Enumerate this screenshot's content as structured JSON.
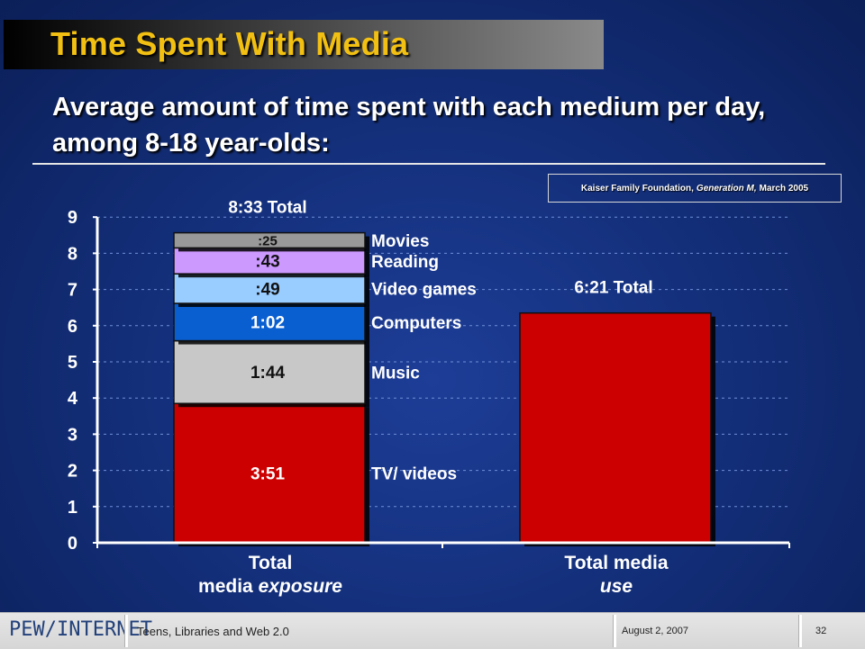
{
  "slide": {
    "title": "Time Spent With Media",
    "subtitle": "Average amount of time spent with each medium per day, among 8-18 year-olds:",
    "source": {
      "org": "Kaiser Family Foundation,",
      "work": "Generation M,",
      "date": "March 2005"
    }
  },
  "footer": {
    "logo": "PEW/INTERNET",
    "title": "Teens, Libraries and Web 2.0",
    "date": "August 2, 2007",
    "page": "32"
  },
  "colors": {
    "tv": "#cc0000",
    "music": "#c8c8c8",
    "computers": "#0a5fd0",
    "video_games": "#99ccff",
    "reading": "#cc99ff",
    "movies": "#999999"
  },
  "chart_data": {
    "type": "bar",
    "stacked": true,
    "ylim": [
      0,
      9
    ],
    "yticks": [
      "0",
      "1",
      "2",
      "3",
      "4",
      "5",
      "6",
      "7",
      "8",
      "9"
    ],
    "grid": true,
    "categories": [
      "Total media exposure",
      "Total media use"
    ],
    "category_labels": [
      {
        "line1": "Total",
        "line2_plain": "media ",
        "line2_italic": "exposure"
      },
      {
        "line1": "Total media",
        "line2_plain": "",
        "line2_italic": "use"
      }
    ],
    "series": [
      {
        "name": "TV/ videos",
        "key": "tv",
        "values": [
          3.85,
          6.35
        ],
        "labels": [
          "3:51",
          ""
        ]
      },
      {
        "name": "Music",
        "key": "music",
        "values": [
          1.733,
          0
        ],
        "labels": [
          "1:44",
          ""
        ]
      },
      {
        "name": "Computers",
        "key": "computers",
        "values": [
          1.033,
          0
        ],
        "labels": [
          "1:02",
          ""
        ]
      },
      {
        "name": "Video games",
        "key": "video_games",
        "values": [
          0.817,
          0
        ],
        "labels": [
          ":49",
          ""
        ]
      },
      {
        "name": "Reading",
        "key": "reading",
        "values": [
          0.717,
          0
        ],
        "labels": [
          ":43",
          ""
        ]
      },
      {
        "name": "Movies",
        "key": "movies",
        "values": [
          0.417,
          0
        ],
        "labels": [
          ":25",
          ""
        ]
      }
    ],
    "totals": [
      "8:33 Total",
      "6:21 Total"
    ]
  }
}
